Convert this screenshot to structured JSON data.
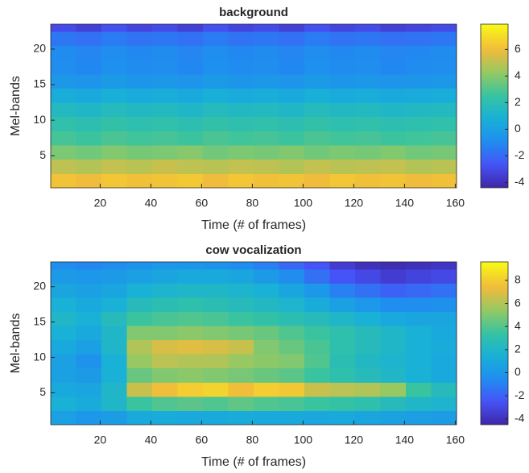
{
  "chart_data": [
    {
      "type": "heatmap",
      "title": "background",
      "xlabel": "Time (# of frames)",
      "ylabel": "Mel-bands",
      "colormap": "parula",
      "x_bins": [
        0.5,
        10.5,
        20.5,
        30.5,
        40.5,
        50.5,
        60.5,
        70.5,
        80.5,
        90.5,
        100.5,
        110.5,
        120.5,
        130.5,
        140.5,
        150.5,
        160.5
      ],
      "y_bins": [
        0.5,
        2.5,
        4.5,
        6.5,
        8.5,
        10.5,
        12.5,
        14.5,
        16.5,
        18.5,
        20.5,
        22.5,
        23.5
      ],
      "values": [
        [
          6.2,
          6.0,
          6.3,
          6.1,
          6.2,
          6.4,
          6.0,
          6.3,
          6.1,
          6.2,
          6.0,
          6.3,
          6.1,
          6.2,
          6.0,
          6.1
        ],
        [
          5.0,
          4.8,
          5.1,
          4.9,
          5.2,
          5.0,
          4.9,
          5.1,
          5.0,
          4.8,
          5.1,
          4.9,
          5.0,
          5.1,
          4.8,
          4.9
        ],
        [
          3.8,
          3.6,
          3.9,
          3.7,
          3.8,
          4.0,
          3.6,
          3.8,
          3.7,
          3.9,
          3.6,
          3.8,
          3.7,
          3.9,
          3.6,
          3.7
        ],
        [
          2.8,
          2.6,
          2.9,
          2.7,
          2.8,
          2.6,
          2.9,
          2.7,
          2.8,
          2.6,
          2.9,
          2.7,
          2.8,
          2.6,
          2.7,
          2.8
        ],
        [
          2.2,
          2.0,
          2.3,
          2.1,
          2.2,
          2.0,
          2.3,
          2.1,
          2.2,
          2.0,
          2.3,
          2.1,
          2.2,
          2.0,
          2.1,
          2.2
        ],
        [
          1.5,
          1.3,
          1.6,
          1.4,
          1.5,
          1.3,
          1.6,
          1.4,
          1.5,
          1.3,
          1.6,
          1.4,
          1.5,
          1.3,
          1.4,
          1.5
        ],
        [
          0.6,
          0.4,
          0.7,
          0.5,
          0.6,
          0.4,
          0.7,
          0.5,
          0.6,
          0.4,
          0.7,
          0.5,
          0.6,
          0.4,
          0.5,
          0.6
        ],
        [
          -0.4,
          -0.6,
          -0.3,
          -0.5,
          -0.4,
          -0.6,
          -0.3,
          -0.5,
          -0.4,
          -0.6,
          -0.3,
          -0.5,
          -0.4,
          -0.6,
          -0.5,
          -0.4
        ],
        [
          -0.9,
          -1.1,
          -0.8,
          -1.0,
          -0.9,
          -1.1,
          -0.8,
          -1.0,
          -0.9,
          -1.1,
          -0.8,
          -1.0,
          -0.9,
          -1.1,
          -1.0,
          -0.9
        ],
        [
          -1.0,
          -1.2,
          -0.9,
          -1.1,
          -1.0,
          -1.2,
          -0.9,
          -1.1,
          -1.0,
          -1.2,
          -0.9,
          -1.1,
          -1.0,
          -1.2,
          -1.1,
          -1.0
        ],
        [
          -1.6,
          -1.8,
          -1.5,
          -1.7,
          -1.6,
          -1.8,
          -1.5,
          -1.7,
          -1.6,
          -1.8,
          -1.5,
          -1.7,
          -1.6,
          -1.8,
          -1.7,
          -1.6
        ],
        [
          -3.0,
          -3.4,
          -2.8,
          -3.2,
          -3.0,
          -3.4,
          -2.8,
          -3.2,
          -3.0,
          -3.4,
          -2.8,
          -3.2,
          -3.0,
          -3.4,
          -3.2,
          -3.0
        ]
      ],
      "xlim": [
        0.5,
        160.5
      ],
      "ylim": [
        0.5,
        23.5
      ],
      "xticks": [
        20,
        40,
        60,
        80,
        100,
        120,
        140,
        160
      ],
      "yticks": [
        5,
        10,
        15,
        20
      ],
      "clim": [
        -4.4,
        7.9
      ],
      "cticks": [
        -4,
        -2,
        0,
        2,
        4,
        6
      ]
    },
    {
      "type": "heatmap",
      "title": "cow vocalization",
      "xlabel": "Time (# of frames)",
      "ylabel": "Mel-bands",
      "colormap": "parula",
      "x_bins": [
        0.5,
        10.5,
        20.5,
        30.5,
        40.5,
        50.5,
        60.5,
        70.5,
        80.5,
        90.5,
        100.5,
        110.5,
        120.5,
        130.5,
        140.5,
        150.5,
        160.5
      ],
      "y_bins": [
        0.5,
        2.5,
        4.5,
        6.5,
        8.5,
        10.5,
        12.5,
        14.5,
        16.5,
        18.5,
        20.5,
        22.5,
        23.5
      ],
      "values": [
        [
          0.5,
          0.0,
          0.3,
          1.0,
          1.2,
          1.0,
          1.1,
          1.2,
          1.0,
          1.1,
          0.9,
          1.0,
          0.8,
          0.6,
          0.4,
          0.3
        ],
        [
          1.5,
          1.2,
          2.0,
          3.5,
          4.0,
          4.2,
          4.0,
          4.3,
          4.0,
          3.8,
          3.5,
          3.3,
          3.0,
          2.5,
          2.0,
          1.8
        ],
        [
          1.0,
          0.8,
          2.0,
          6.5,
          7.5,
          8.0,
          8.2,
          7.5,
          8.0,
          7.8,
          6.5,
          6.2,
          6.0,
          5.5,
          3.5,
          2.5
        ],
        [
          0.5,
          0.2,
          1.5,
          4.5,
          5.0,
          5.2,
          5.0,
          4.8,
          4.5,
          4.2,
          3.5,
          3.0,
          2.5,
          2.0,
          1.5,
          1.0
        ],
        [
          0.5,
          -0.2,
          1.5,
          5.5,
          6.2,
          6.0,
          6.0,
          5.5,
          5.2,
          5.0,
          4.0,
          2.8,
          2.2,
          1.8,
          1.5,
          1.0
        ],
        [
          1.0,
          0.5,
          2.0,
          6.0,
          6.8,
          7.0,
          6.8,
          6.5,
          5.0,
          4.5,
          3.8,
          3.0,
          2.5,
          2.0,
          1.5,
          1.2
        ],
        [
          1.5,
          1.0,
          2.0,
          5.0,
          5.0,
          5.2,
          5.0,
          4.8,
          4.5,
          4.0,
          3.5,
          3.0,
          2.5,
          2.0,
          1.5,
          1.0
        ],
        [
          2.0,
          1.5,
          2.5,
          3.5,
          3.8,
          4.0,
          3.8,
          3.5,
          3.2,
          2.8,
          2.5,
          2.0,
          1.5,
          1.0,
          0.8,
          0.8
        ],
        [
          1.5,
          1.0,
          1.5,
          2.5,
          2.8,
          3.0,
          2.8,
          2.5,
          2.2,
          1.8,
          1.2,
          0.5,
          0.0,
          -0.5,
          -0.5,
          -0.3
        ],
        [
          0.8,
          0.5,
          0.8,
          1.5,
          1.8,
          2.0,
          2.0,
          1.8,
          1.5,
          0.8,
          0.0,
          -1.0,
          -1.5,
          -2.0,
          -1.8,
          -1.5
        ],
        [
          0.2,
          0.0,
          0.2,
          0.5,
          0.8,
          1.0,
          1.0,
          0.8,
          0.2,
          -0.5,
          -1.5,
          -2.5,
          -3.0,
          -3.5,
          -3.2,
          -3.0
        ],
        [
          -0.5,
          -0.8,
          -0.5,
          -0.2,
          0.0,
          0.0,
          -0.2,
          -0.5,
          -1.0,
          -1.8,
          -2.5,
          -3.5,
          -4.0,
          -4.2,
          -4.0,
          -3.8
        ]
      ],
      "xlim": [
        0.5,
        160.5
      ],
      "ylim": [
        0.5,
        23.5
      ],
      "xticks": [
        20,
        40,
        60,
        80,
        100,
        120,
        140,
        160
      ],
      "yticks": [
        5,
        10,
        15,
        20
      ],
      "clim": [
        -4.5,
        9.6
      ],
      "cticks": [
        -4,
        -2,
        0,
        2,
        4,
        6,
        8
      ]
    }
  ]
}
